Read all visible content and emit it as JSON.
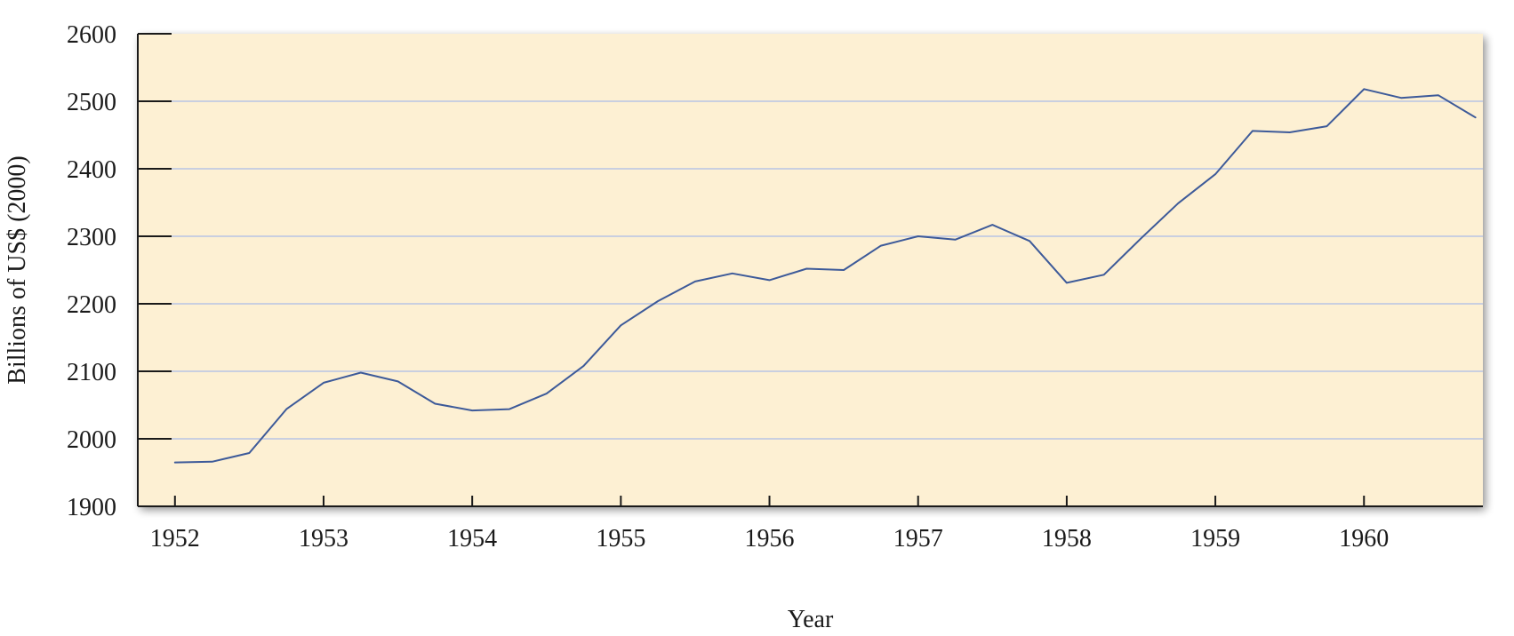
{
  "chart_data": {
    "type": "line",
    "title": "",
    "xlabel": "Year",
    "ylabel": "Billions of US$ (2000)",
    "ylim": [
      1900,
      2600
    ],
    "xlim": [
      1951.75,
      1960.8
    ],
    "yticks": [
      1900,
      2000,
      2100,
      2200,
      2300,
      2400,
      2500,
      2600
    ],
    "xticks": [
      "1952",
      "1953",
      "1954",
      "1955",
      "1956",
      "1957",
      "1958",
      "1959",
      "1960"
    ],
    "grid": "horizontal",
    "colors": {
      "plot_background": "#fdf0d3",
      "line": "#3d5a99",
      "grid": "#c9cfe0",
      "axis": "#1a1a1a"
    },
    "series": [
      {
        "x": [
          1952.0,
          1952.25,
          1952.5,
          1952.75,
          1953.0,
          1953.25,
          1953.5,
          1953.75,
          1954.0,
          1954.25,
          1954.5,
          1954.75,
          1955.0,
          1955.25,
          1955.5,
          1955.75,
          1956.0,
          1956.25,
          1956.5,
          1956.75,
          1957.0,
          1957.25,
          1957.5,
          1957.75,
          1958.0,
          1958.25,
          1958.5,
          1958.75,
          1959.0,
          1959.25,
          1959.5,
          1959.75,
          1960.0,
          1960.25,
          1960.5,
          1960.75
        ],
        "values": [
          1965,
          1966,
          1979,
          2044,
          2083,
          2098,
          2085,
          2052,
          2042,
          2044,
          2067,
          2108,
          2168,
          2204,
          2233,
          2245,
          2235,
          2252,
          2250,
          2286,
          2300,
          2295,
          2317,
          2293,
          2231,
          2243,
          2297,
          2349,
          2392,
          2456,
          2454,
          2463,
          2518,
          2505,
          2509,
          2476
        ]
      }
    ]
  }
}
